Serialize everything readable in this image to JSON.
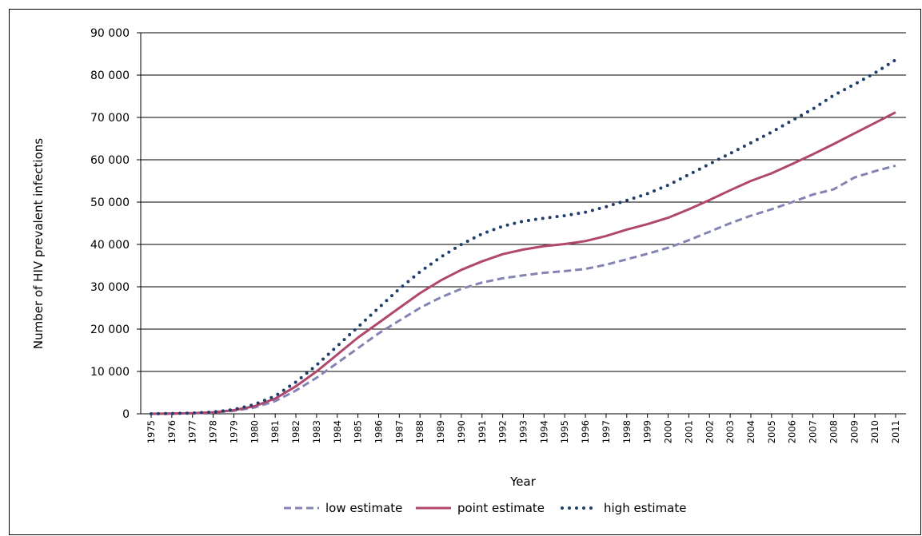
{
  "chart_data": {
    "type": "line",
    "xlabel": "Year",
    "ylabel": "Number of HIV prevalent infections",
    "ylim": [
      0,
      90000
    ],
    "yticks": [
      "0",
      "10 000",
      "20 000",
      "30 000",
      "40 000",
      "50 000",
      "60 000",
      "70 000",
      "80 000",
      "90 000"
    ],
    "ytick_values": [
      0,
      10000,
      20000,
      30000,
      40000,
      50000,
      60000,
      70000,
      80000,
      90000
    ],
    "grid": "horizontal",
    "legend_position": "bottom",
    "categories": [
      "1975",
      "1976",
      "1977",
      "1978",
      "1979",
      "1980",
      "1981",
      "1982",
      "1983",
      "1984",
      "1985",
      "1986",
      "1987",
      "1988",
      "1989",
      "1990",
      "1991",
      "1992",
      "1993",
      "1994",
      "1995",
      "1996",
      "1997",
      "1998",
      "1999",
      "2000",
      "2001",
      "2002",
      "2003",
      "2004",
      "2005",
      "2006",
      "2007",
      "2008",
      "2009",
      "2010",
      "2011"
    ],
    "series": [
      {
        "name": "low estimate",
        "color": "#8484b4",
        "style": "dashed",
        "values": [
          0,
          50,
          120,
          300,
          700,
          1500,
          3000,
          5500,
          8500,
          12000,
          15500,
          19000,
          22000,
          25000,
          27500,
          29500,
          31000,
          32000,
          32700,
          33300,
          33700,
          34200,
          35200,
          36500,
          37800,
          39200,
          41000,
          43000,
          45000,
          46800,
          48300,
          50000,
          51800,
          53000,
          55800,
          57300,
          58600
        ]
      },
      {
        "name": "point estimate",
        "color": "#b0486e",
        "style": "solid",
        "values": [
          0,
          60,
          150,
          350,
          850,
          1800,
          3600,
          6500,
          10000,
          14000,
          18000,
          21500,
          25000,
          28500,
          31500,
          34000,
          36000,
          37700,
          38800,
          39600,
          40100,
          40800,
          42000,
          43500,
          44800,
          46300,
          48300,
          50500,
          52800,
          55000,
          56800,
          59000,
          61300,
          63700,
          66200,
          68700,
          71200
        ]
      },
      {
        "name": "high estimate",
        "color": "#1f3e6b",
        "style": "dotted",
        "values": [
          0,
          70,
          170,
          420,
          1000,
          2200,
          4200,
          7500,
          11500,
          16000,
          20500,
          25000,
          29500,
          33500,
          37000,
          40000,
          42500,
          44300,
          45500,
          46200,
          46800,
          47600,
          48900,
          50400,
          52000,
          54000,
          56500,
          59000,
          61500,
          64000,
          66500,
          69300,
          72000,
          75200,
          77800,
          80500,
          83600
        ]
      }
    ]
  }
}
